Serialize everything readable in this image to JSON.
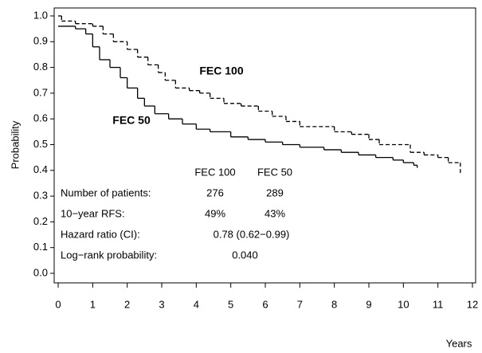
{
  "chart_data": {
    "type": "step",
    "y_label": "Probability",
    "x_label": "Years",
    "xlim": [
      0,
      12
    ],
    "ylim": [
      0,
      1
    ],
    "xticks": [
      0,
      1,
      2,
      3,
      4,
      5,
      6,
      7,
      8,
      9,
      10,
      11,
      12
    ],
    "yticks": [
      {
        "value": 0,
        "label": "0.0"
      },
      0.1,
      0.2,
      0.3,
      0.4,
      0.5,
      0.6,
      0.7,
      0.8,
      0.9,
      {
        "value": 1,
        "label": "1.0"
      }
    ],
    "series": [
      {
        "name": "FEC 100",
        "color": "#000000",
        "dash": "5,3",
        "x": [
          0,
          0.1,
          0.5,
          1.0,
          1.3,
          1.6,
          2.0,
          2.3,
          2.6,
          2.9,
          3.1,
          3.4,
          3.8,
          4.1,
          4.4,
          4.8,
          5.3,
          5.8,
          6.2,
          6.6,
          7.0,
          8.0,
          8.5,
          9.0,
          9.3,
          10.2,
          10.6,
          11.0,
          11.3,
          11.65
        ],
        "values": [
          1.0,
          0.98,
          0.97,
          0.96,
          0.93,
          0.9,
          0.87,
          0.84,
          0.81,
          0.78,
          0.75,
          0.72,
          0.71,
          0.7,
          0.68,
          0.66,
          0.65,
          0.63,
          0.61,
          0.59,
          0.57,
          0.55,
          0.54,
          0.52,
          0.5,
          0.47,
          0.46,
          0.45,
          0.43,
          0.39
        ]
      },
      {
        "name": "FEC 50",
        "color": "#000000",
        "dash": "none",
        "x": [
          0,
          0.5,
          0.8,
          1.0,
          1.2,
          1.5,
          1.8,
          2.0,
          2.3,
          2.5,
          2.8,
          3.2,
          3.6,
          4.0,
          4.4,
          5.0,
          5.5,
          6.0,
          6.5,
          7.0,
          7.7,
          8.2,
          8.7,
          9.2,
          9.7,
          10.0,
          10.3,
          10.4
        ],
        "values": [
          0.96,
          0.95,
          0.93,
          0.88,
          0.83,
          0.8,
          0.76,
          0.72,
          0.68,
          0.65,
          0.62,
          0.6,
          0.58,
          0.56,
          0.55,
          0.53,
          0.52,
          0.51,
          0.5,
          0.49,
          0.48,
          0.47,
          0.46,
          0.45,
          0.44,
          0.43,
          0.42,
          0.41
        ]
      }
    ],
    "stats_table": {
      "columns": [
        "FEC 100",
        "FEC 50"
      ],
      "rows": [
        {
          "label": "Number of patients:",
          "values": [
            "276",
            "289"
          ]
        },
        {
          "label": "10−year RFS:",
          "values": [
            "49%",
            "43%"
          ]
        },
        {
          "label": "Hazard ratio (CI):",
          "values": [
            "0.78 (0.62−0.99)"
          ]
        },
        {
          "label": "Log−rank probability:",
          "values": [
            "0.040"
          ]
        }
      ]
    }
  }
}
